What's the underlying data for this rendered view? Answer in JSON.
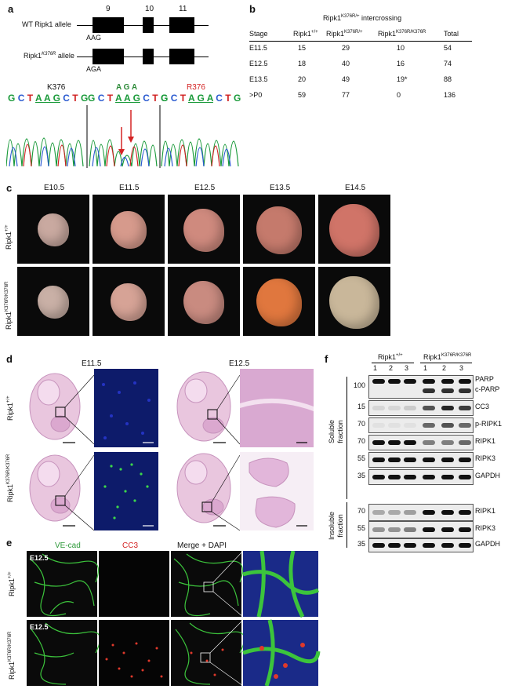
{
  "panel_a": {
    "label": "a",
    "exon_numbers": [
      "9",
      "10",
      "11"
    ],
    "wt_allele": "WT Ripk1 allele",
    "wt_codon": "AAG",
    "mut_allele_prefix": "Ripk1",
    "mut_allele_sup": "K376R",
    "mut_allele_suffix": " allele",
    "mut_codon": "AGA",
    "site_left": "K376",
    "site_mid_top": "A G A",
    "site_right": "R376",
    "seq_1": "G C T A A G C T G",
    "seq_2": "G C T A A G C T G",
    "seq_3": "G C T A G A C T G"
  },
  "panel_b": {
    "label": "b",
    "title_prefix": "Ripk1",
    "title_sup": "K376R/+",
    "title_suffix": " intercrossing",
    "headers": {
      "stage": "Stage",
      "wt": "Ripk1",
      "wt_sup": "+/+",
      "het": "Ripk1",
      "het_sup": "K376R/+",
      "hom": "Ripk1",
      "hom_sup": "K376R/K376R",
      "total": "Total"
    },
    "rows": [
      {
        "stage": "E11.5",
        "wt": "15",
        "het": "29",
        "hom": "10",
        "total": "54"
      },
      {
        "stage": "E12.5",
        "wt": "18",
        "het": "40",
        "hom": "16",
        "total": "74"
      },
      {
        "stage": "E13.5",
        "wt": "20",
        "het": "49",
        "hom": "19*",
        "total": "88"
      },
      {
        "stage": ">P0",
        "wt": "59",
        "het": "77",
        "hom": "0",
        "total": "136"
      }
    ]
  },
  "panel_c": {
    "label": "c",
    "stages": [
      "E10.5",
      "E11.5",
      "E12.5",
      "E13.5",
      "E14.5"
    ],
    "row1_prefix": "Ripk1",
    "row1_sup": "+/+",
    "row2_prefix": "Ripk1",
    "row2_sup": "K376R/K376R"
  },
  "panel_d": {
    "label": "d",
    "stage_left": "E11.5",
    "stage_right": "E12.5",
    "row1_prefix": "Ripk1",
    "row1_sup": "+/+",
    "row2_prefix": "Ripk1",
    "row2_sup": "K376R/K376R"
  },
  "panel_e": {
    "label": "e",
    "col_vecad": "VE-cad",
    "col_cc3": "CC3",
    "col_merge": "Merge + DAPI",
    "stage_top": "E12.5",
    "stage_bottom": "E12.5",
    "row1_prefix": "Ripk1",
    "row1_sup": "+/+",
    "row2_prefix": "Ripk1",
    "row2_sup": "K376R/K376R",
    "colors": {
      "vecad": "#3cc43c",
      "cc3": "#e0392b",
      "dapi": "#2a3aa8"
    }
  },
  "panel_f": {
    "label": "f",
    "group_wt_prefix": "Ripk1",
    "group_wt_sup": "+/+",
    "group_mut_prefix": "Ripk1",
    "group_mut_sup": "K376R/K376R",
    "lanes": [
      "1",
      "2",
      "3",
      "1",
      "2",
      "3"
    ],
    "soluble_fraction": "Soluble fraction",
    "insoluble_fraction": "Insoluble fraction",
    "blots": [
      {
        "mw": "100",
        "labels": [
          "PARP",
          "c-PARP"
        ]
      },
      {
        "mw": "15",
        "labels": [
          "CC3"
        ]
      },
      {
        "mw": "70",
        "labels": [
          "p-RIPK1"
        ]
      },
      {
        "mw": "70",
        "labels": [
          "RIPK1"
        ]
      },
      {
        "mw": "55",
        "labels": [
          "RIPK3"
        ]
      },
      {
        "mw": "35",
        "labels": [
          "GAPDH"
        ]
      },
      {
        "mw": "70",
        "labels": [
          "RIPK1"
        ]
      },
      {
        "mw": "55",
        "labels": [
          "RIPK3"
        ]
      },
      {
        "mw": "35",
        "labels": [
          "GAPDH"
        ]
      }
    ]
  }
}
